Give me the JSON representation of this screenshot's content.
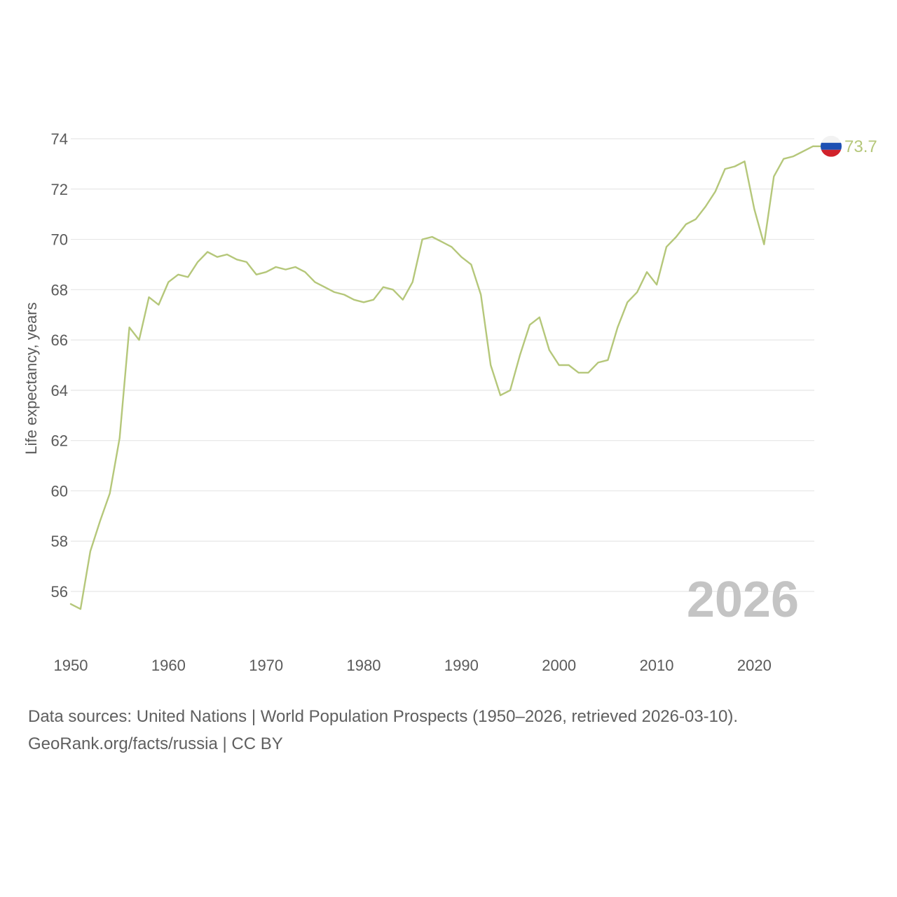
{
  "colors": {
    "line": "#b5c77a",
    "grid": "#e6e6e6",
    "text": "#5a5a5a",
    "watermark": "#c4c4c4",
    "flag_white": "#f2f2f2",
    "flag_blue": "#1c4fb3",
    "flag_red": "#d1222b"
  },
  "chart_data": {
    "type": "line",
    "ylabel": "Life expectancy, years",
    "xlabel": "",
    "xlim": [
      1950,
      2026
    ],
    "ylim": [
      54,
      75.5
    ],
    "yticks": [
      56,
      58,
      60,
      62,
      64,
      66,
      68,
      70,
      72,
      74
    ],
    "xticks": [
      1950,
      1960,
      1970,
      1980,
      1990,
      2000,
      2010,
      2020
    ],
    "grid": "horizontal",
    "year_label": "2026",
    "end_label": "73.7",
    "end_marker": "russia-flag",
    "series": [
      {
        "name": "Russia",
        "x": [
          1950,
          1951,
          1952,
          1953,
          1954,
          1955,
          1956,
          1957,
          1958,
          1959,
          1960,
          1961,
          1962,
          1963,
          1964,
          1965,
          1966,
          1967,
          1968,
          1969,
          1970,
          1971,
          1972,
          1973,
          1974,
          1975,
          1976,
          1977,
          1978,
          1979,
          1980,
          1981,
          1982,
          1983,
          1984,
          1985,
          1986,
          1987,
          1988,
          1989,
          1990,
          1991,
          1992,
          1993,
          1994,
          1995,
          1996,
          1997,
          1998,
          1999,
          2000,
          2001,
          2002,
          2003,
          2004,
          2005,
          2006,
          2007,
          2008,
          2009,
          2010,
          2011,
          2012,
          2013,
          2014,
          2015,
          2016,
          2017,
          2018,
          2019,
          2020,
          2021,
          2022,
          2023,
          2024,
          2025,
          2026
        ],
        "values": [
          55.5,
          55.3,
          57.6,
          58.8,
          59.9,
          62.1,
          66.5,
          66.0,
          67.7,
          67.4,
          68.3,
          68.6,
          68.5,
          69.1,
          69.5,
          69.3,
          69.4,
          69.2,
          69.1,
          68.6,
          68.7,
          68.9,
          68.8,
          68.9,
          68.7,
          68.3,
          68.1,
          67.9,
          67.8,
          67.6,
          67.5,
          67.6,
          68.1,
          68.0,
          67.6,
          68.3,
          70.0,
          70.1,
          69.9,
          69.7,
          69.3,
          69.0,
          67.8,
          65.0,
          63.8,
          64.0,
          65.4,
          66.6,
          66.9,
          65.6,
          65.0,
          65.0,
          64.7,
          64.7,
          65.1,
          65.2,
          66.5,
          67.5,
          67.9,
          68.7,
          68.2,
          69.7,
          70.1,
          70.6,
          70.8,
          71.3,
          71.9,
          72.8,
          72.9,
          73.1,
          71.2,
          69.8,
          72.5,
          73.2,
          73.3,
          73.5,
          73.7
        ]
      }
    ]
  },
  "footer": {
    "line1": "Data sources: United Nations | World Population Prospects (1950–2026, retrieved 2026-03-10).",
    "line2": "GeoRank.org/facts/russia | CC BY"
  }
}
